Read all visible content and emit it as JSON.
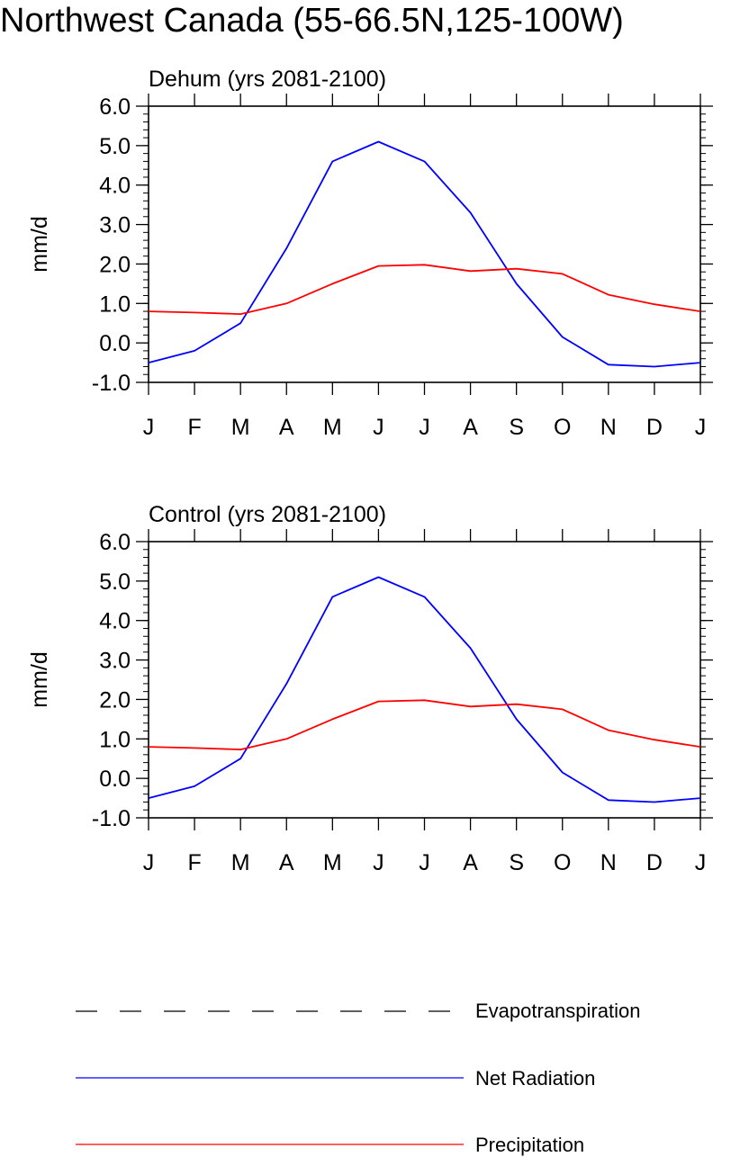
{
  "title": "Northwest Canada (55-66.5N,125-100W)",
  "legend": {
    "items": [
      {
        "label": "Evapotranspiration",
        "color": "#000000",
        "style": "dashed"
      },
      {
        "label": "Net Radiation",
        "color": "#0000ff",
        "style": "solid"
      },
      {
        "label": "Precipitation",
        "color": "#ff0000",
        "style": "solid"
      }
    ]
  },
  "chart_data": [
    {
      "type": "line",
      "title": "Dehum (yrs 2081-2100)",
      "ylabel": "mm/d",
      "ylim": [
        -1.0,
        6.0
      ],
      "ytick_labels": [
        "-1.0",
        "0.0",
        "1.0",
        "2.0",
        "3.0",
        "4.0",
        "5.0",
        "6.0"
      ],
      "categories": [
        "J",
        "F",
        "M",
        "A",
        "M",
        "J",
        "J",
        "A",
        "S",
        "O",
        "N",
        "D",
        "J"
      ],
      "series": [
        {
          "name": "Net Radiation",
          "color": "#0000ff",
          "values": [
            -0.5,
            -0.2,
            0.5,
            2.4,
            4.6,
            5.1,
            4.6,
            3.3,
            1.5,
            0.15,
            -0.55,
            -0.6,
            -0.5
          ]
        },
        {
          "name": "Precipitation",
          "color": "#ff0000",
          "values": [
            0.8,
            0.77,
            0.73,
            1.0,
            1.5,
            1.95,
            1.98,
            1.82,
            1.88,
            1.75,
            1.22,
            0.98,
            0.8
          ]
        }
      ]
    },
    {
      "type": "line",
      "title": "Control (yrs 2081-2100)",
      "ylabel": "mm/d",
      "ylim": [
        -1.0,
        6.0
      ],
      "ytick_labels": [
        "-1.0",
        "0.0",
        "1.0",
        "2.0",
        "3.0",
        "4.0",
        "5.0",
        "6.0"
      ],
      "categories": [
        "J",
        "F",
        "M",
        "A",
        "M",
        "J",
        "J",
        "A",
        "S",
        "O",
        "N",
        "D",
        "J"
      ],
      "series": [
        {
          "name": "Net Radiation",
          "color": "#0000ff",
          "values": [
            -0.5,
            -0.2,
            0.5,
            2.4,
            4.6,
            5.1,
            4.6,
            3.3,
            1.5,
            0.15,
            -0.55,
            -0.6,
            -0.5
          ]
        },
        {
          "name": "Precipitation",
          "color": "#ff0000",
          "values": [
            0.8,
            0.77,
            0.73,
            1.0,
            1.5,
            1.95,
            1.98,
            1.82,
            1.88,
            1.75,
            1.22,
            0.98,
            0.8
          ]
        }
      ]
    }
  ]
}
